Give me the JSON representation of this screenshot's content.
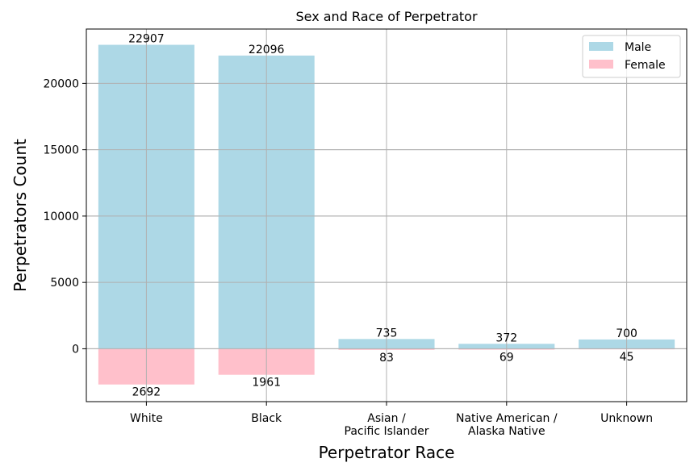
{
  "chart_data": {
    "type": "bar",
    "title": "Sex and Race of Perpetrator",
    "xlabel": "Perpetrator Race",
    "ylabel": "Perpetrators Count",
    "categories": [
      [
        "White"
      ],
      [
        "Black"
      ],
      [
        "Asian /",
        "Pacific Islander"
      ],
      [
        "Native American /",
        "Alaska Native"
      ],
      [
        "Unknown"
      ]
    ],
    "series": [
      {
        "name": "Male",
        "values": [
          22907,
          22096,
          735,
          372,
          700
        ],
        "color": "#add8e6",
        "direction": "up"
      },
      {
        "name": "Female",
        "values": [
          2692,
          1961,
          83,
          69,
          45
        ],
        "color": "#ffc0cb",
        "direction": "down"
      }
    ],
    "ylim": [
      -3985,
      24095
    ],
    "yticks": [
      0,
      5000,
      10000,
      15000,
      20000
    ],
    "ytick_labels": [
      "0",
      "5000",
      "10000",
      "15000",
      "20000"
    ],
    "grid": true,
    "legend_position": "top-right"
  }
}
